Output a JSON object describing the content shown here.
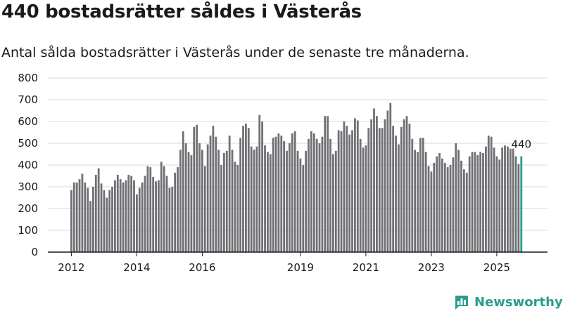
{
  "header": {
    "title": "440 bostadsrätter såldes i Västerås",
    "subtitle": "Antal sålda bostadsrätter i Västerås under de senaste tre månaderna."
  },
  "chart_data": {
    "type": "bar",
    "title": "440 bostadsrätter såldes i Västerås",
    "subtitle": "Antal sålda bostadsrätter i Västerås under de senaste tre månaderna.",
    "xlabel": "",
    "ylabel": "",
    "ylim": [
      0,
      800
    ],
    "yticks": [
      0,
      100,
      200,
      300,
      400,
      500,
      600,
      700,
      800
    ],
    "xticks": [
      "2012",
      "2014",
      "2016",
      "2019",
      "2021",
      "2023",
      "2025"
    ],
    "grid": true,
    "series": [
      {
        "name": "Antal sålda bostadsrätter",
        "values": [
          285,
          320,
          320,
          335,
          360,
          320,
          295,
          235,
          300,
          355,
          385,
          315,
          285,
          250,
          285,
          300,
          330,
          355,
          335,
          320,
          330,
          355,
          350,
          330,
          265,
          295,
          320,
          350,
          395,
          390,
          345,
          325,
          330,
          415,
          395,
          350,
          295,
          300,
          365,
          390,
          470,
          555,
          500,
          460,
          445,
          575,
          585,
          500,
          470,
          395,
          495,
          535,
          580,
          530,
          470,
          400,
          455,
          465,
          535,
          470,
          415,
          400,
          525,
          580,
          590,
          570,
          485,
          470,
          485,
          630,
          600,
          490,
          460,
          450,
          525,
          530,
          545,
          535,
          510,
          465,
          500,
          545,
          555,
          465,
          430,
          400,
          465,
          520,
          555,
          545,
          520,
          500,
          530,
          625,
          625,
          520,
          450,
          465,
          560,
          555,
          600,
          580,
          540,
          560,
          615,
          605,
          520,
          480,
          490,
          570,
          610,
          660,
          625,
          570,
          570,
          610,
          650,
          685,
          580,
          535,
          495,
          575,
          610,
          625,
          590,
          520,
          470,
          460,
          525,
          525,
          460,
          395,
          370,
          410,
          440,
          455,
          430,
          410,
          390,
          400,
          435,
          500,
          470,
          420,
          380,
          365,
          440,
          460,
          460,
          445,
          460,
          455,
          485,
          535,
          530,
          480,
          440,
          425,
          480,
          490,
          485,
          475,
          475,
          440,
          405,
          440
        ]
      }
    ],
    "highlight": {
      "label": "440",
      "value": 440,
      "index": 165
    }
  },
  "colors": {
    "bar": "#717075",
    "highlight": "#2a9d8f",
    "grid": "#d9d9d9",
    "axis": "#1a1a1a",
    "text": "#1a1a1a"
  },
  "logo": {
    "text": "Newsworthy",
    "icon": "newsworthy-chart-icon"
  }
}
